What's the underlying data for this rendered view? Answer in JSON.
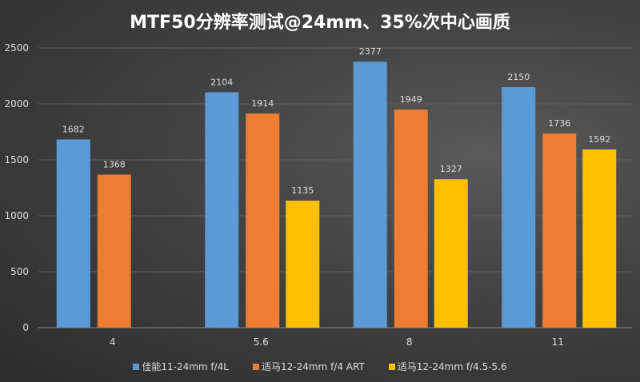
{
  "chart_data": {
    "type": "bar",
    "title": "MTF50分辨率测试@24mm、35%次中心画质",
    "xlabel": "",
    "ylabel": "",
    "categories": [
      "4",
      "5.6",
      "8",
      "11"
    ],
    "ylim": [
      0,
      2500
    ],
    "yticks": [
      0,
      500,
      1000,
      1500,
      2000,
      2500
    ],
    "grid": true,
    "legend_position": "bottom",
    "series": [
      {
        "name": "佳能11-24mm f/4L",
        "color": "#5b9bd5",
        "values": [
          1682,
          2104,
          2377,
          2150
        ]
      },
      {
        "name": "适马12-24mm f/4 ART",
        "color": "#ed7d31",
        "values": [
          1368,
          1914,
          1949,
          1736
        ]
      },
      {
        "name": "适马12-24mm f/4.5-5.6",
        "color": "#ffc000",
        "values": [
          null,
          1135,
          1327,
          1592
        ]
      }
    ]
  }
}
